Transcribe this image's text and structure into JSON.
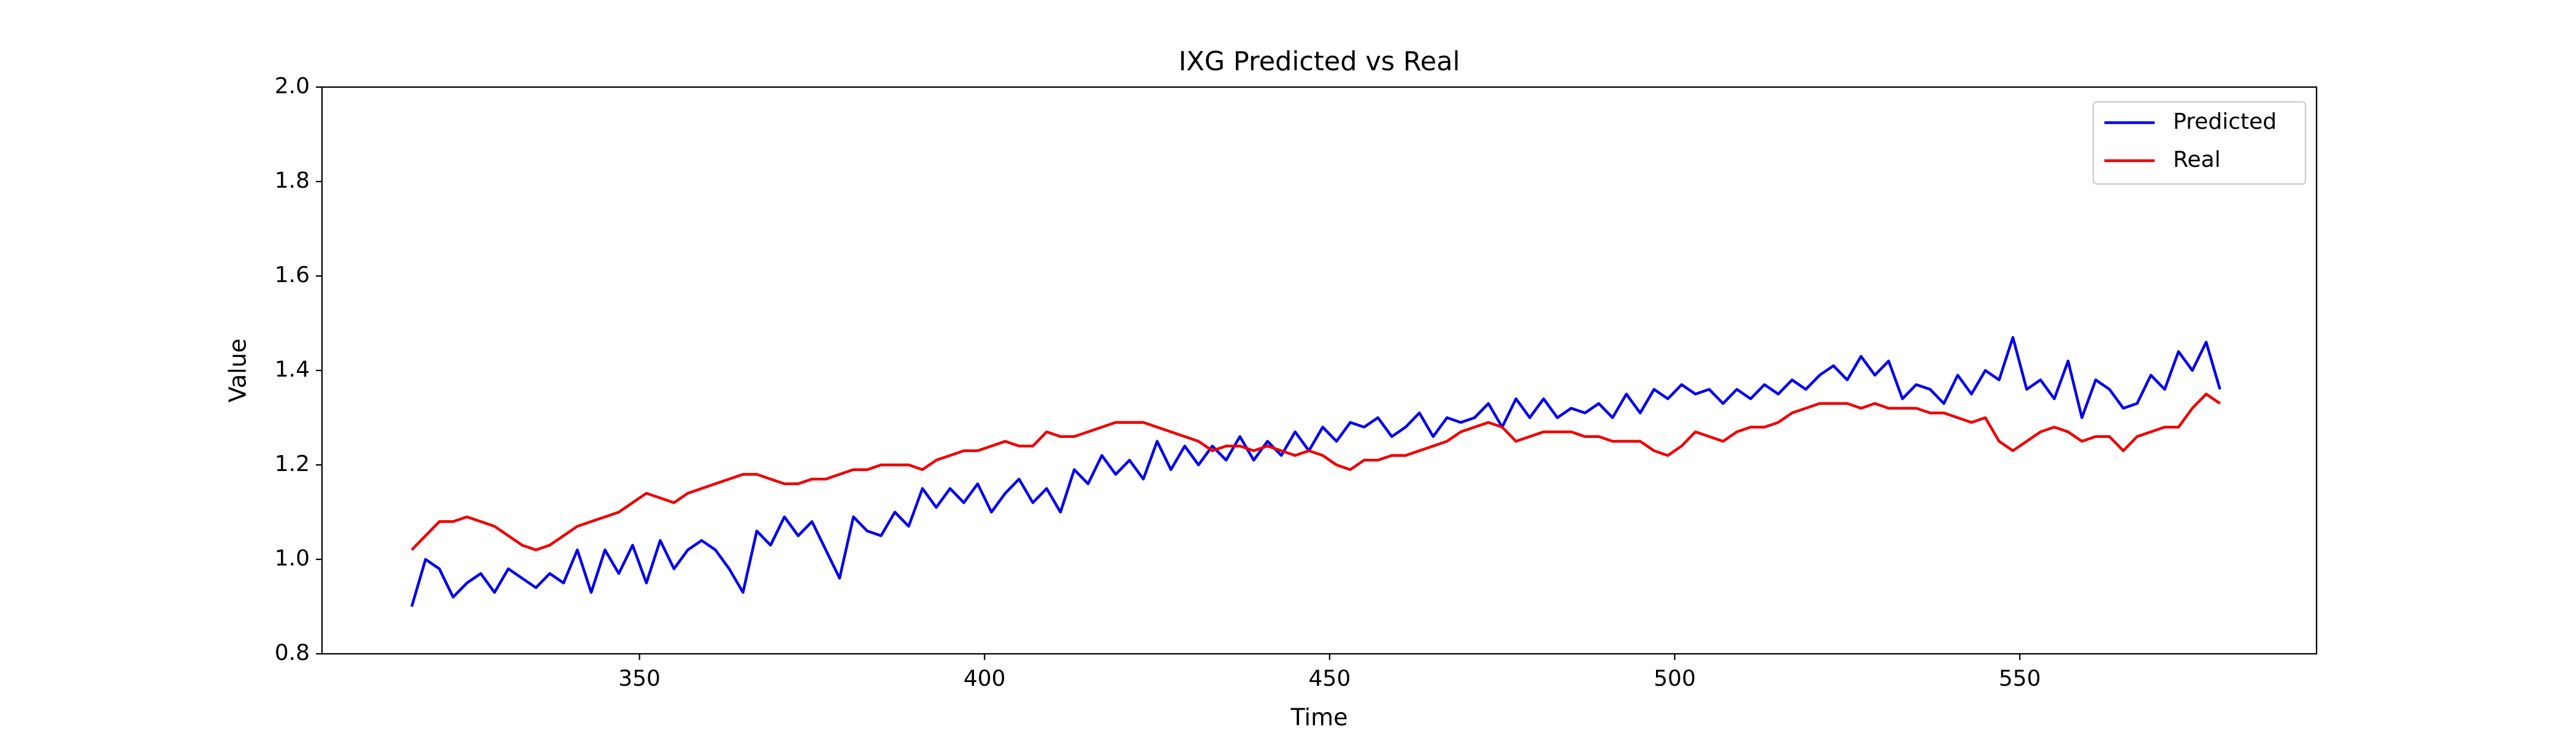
{
  "chart_data": {
    "type": "line",
    "title": "IXG Predicted vs Real",
    "xlabel": "Time",
    "ylabel": "Value",
    "x": [
      317,
      319,
      321,
      323,
      325,
      327,
      329,
      331,
      333,
      335,
      337,
      339,
      341,
      343,
      345,
      347,
      349,
      351,
      353,
      355,
      357,
      359,
      361,
      363,
      365,
      367,
      369,
      371,
      373,
      375,
      377,
      379,
      381,
      383,
      385,
      387,
      389,
      391,
      393,
      395,
      397,
      399,
      401,
      403,
      405,
      407,
      409,
      411,
      413,
      415,
      417,
      419,
      421,
      423,
      425,
      427,
      429,
      431,
      433,
      435,
      437,
      439,
      441,
      443,
      445,
      447,
      449,
      451,
      453,
      455,
      457,
      459,
      461,
      463,
      465,
      467,
      469,
      471,
      473,
      475,
      477,
      479,
      481,
      483,
      485,
      487,
      489,
      491,
      493,
      495,
      497,
      499,
      501,
      503,
      505,
      507,
      509,
      511,
      513,
      515,
      517,
      519,
      521,
      523,
      525,
      527,
      529,
      531,
      533,
      535,
      537,
      539,
      541,
      543,
      545,
      547,
      549,
      551,
      553,
      555,
      557,
      559,
      561,
      563,
      565,
      567,
      569,
      571,
      573,
      575,
      577,
      579
    ],
    "series": [
      {
        "name": "Predicted",
        "color": "#0000ee",
        "values": [
          0.9,
          1.0,
          0.98,
          0.92,
          0.95,
          0.97,
          0.93,
          0.98,
          0.96,
          0.94,
          0.97,
          0.95,
          1.02,
          0.93,
          1.02,
          0.97,
          1.03,
          0.95,
          1.04,
          0.98,
          1.02,
          1.04,
          1.02,
          0.98,
          0.93,
          1.06,
          1.03,
          1.09,
          1.05,
          1.08,
          1.02,
          0.96,
          1.09,
          1.06,
          1.05,
          1.1,
          1.07,
          1.15,
          1.11,
          1.15,
          1.12,
          1.16,
          1.1,
          1.14,
          1.17,
          1.12,
          1.15,
          1.1,
          1.19,
          1.16,
          1.22,
          1.18,
          1.21,
          1.17,
          1.25,
          1.19,
          1.24,
          1.2,
          1.24,
          1.21,
          1.26,
          1.21,
          1.25,
          1.22,
          1.27,
          1.23,
          1.28,
          1.25,
          1.29,
          1.28,
          1.3,
          1.26,
          1.28,
          1.31,
          1.26,
          1.3,
          1.29,
          1.3,
          1.33,
          1.28,
          1.34,
          1.3,
          1.34,
          1.3,
          1.32,
          1.31,
          1.33,
          1.3,
          1.35,
          1.31,
          1.36,
          1.34,
          1.37,
          1.35,
          1.36,
          1.33,
          1.36,
          1.34,
          1.37,
          1.35,
          1.38,
          1.36,
          1.39,
          1.41,
          1.38,
          1.43,
          1.39,
          1.42,
          1.34,
          1.37,
          1.36,
          1.33,
          1.39,
          1.35,
          1.4,
          1.38,
          1.47,
          1.36,
          1.38,
          1.34,
          1.42,
          1.3,
          1.38,
          1.36,
          1.32,
          1.33,
          1.39,
          1.36,
          1.44,
          1.4,
          1.46,
          1.36
        ]
      },
      {
        "name": "Real",
        "color": "#ee0000",
        "values": [
          1.02,
          1.05,
          1.08,
          1.08,
          1.09,
          1.08,
          1.07,
          1.05,
          1.03,
          1.02,
          1.03,
          1.05,
          1.07,
          1.08,
          1.09,
          1.1,
          1.12,
          1.14,
          1.13,
          1.12,
          1.14,
          1.15,
          1.16,
          1.17,
          1.18,
          1.18,
          1.17,
          1.16,
          1.16,
          1.17,
          1.17,
          1.18,
          1.19,
          1.19,
          1.2,
          1.2,
          1.2,
          1.19,
          1.21,
          1.22,
          1.23,
          1.23,
          1.24,
          1.25,
          1.24,
          1.24,
          1.27,
          1.26,
          1.26,
          1.27,
          1.28,
          1.29,
          1.29,
          1.29,
          1.28,
          1.27,
          1.26,
          1.25,
          1.23,
          1.24,
          1.24,
          1.23,
          1.24,
          1.23,
          1.22,
          1.23,
          1.22,
          1.2,
          1.19,
          1.21,
          1.21,
          1.22,
          1.22,
          1.23,
          1.24,
          1.25,
          1.27,
          1.28,
          1.29,
          1.28,
          1.25,
          1.26,
          1.27,
          1.27,
          1.27,
          1.26,
          1.26,
          1.25,
          1.25,
          1.25,
          1.23,
          1.22,
          1.24,
          1.27,
          1.26,
          1.25,
          1.27,
          1.28,
          1.28,
          1.29,
          1.31,
          1.32,
          1.33,
          1.33,
          1.33,
          1.32,
          1.33,
          1.32,
          1.32,
          1.32,
          1.31,
          1.31,
          1.3,
          1.29,
          1.3,
          1.25,
          1.23,
          1.25,
          1.27,
          1.28,
          1.27,
          1.25,
          1.26,
          1.26,
          1.23,
          1.26,
          1.27,
          1.28,
          1.28,
          1.32,
          1.35,
          1.33
        ]
      }
    ],
    "xlim": [
      304,
      593
    ],
    "xticks": [
      350,
      400,
      450,
      500,
      550
    ],
    "ylim": [
      0.8,
      2.0
    ],
    "yticks": [
      {
        "value": 0.8,
        "label": "0.8"
      },
      {
        "value": 1.0,
        "label": "1.0"
      },
      1.2,
      1.4,
      1.6,
      1.8,
      {
        "value": 2.0,
        "label": "2.0"
      }
    ],
    "legend": "upper right",
    "grid": false
  }
}
